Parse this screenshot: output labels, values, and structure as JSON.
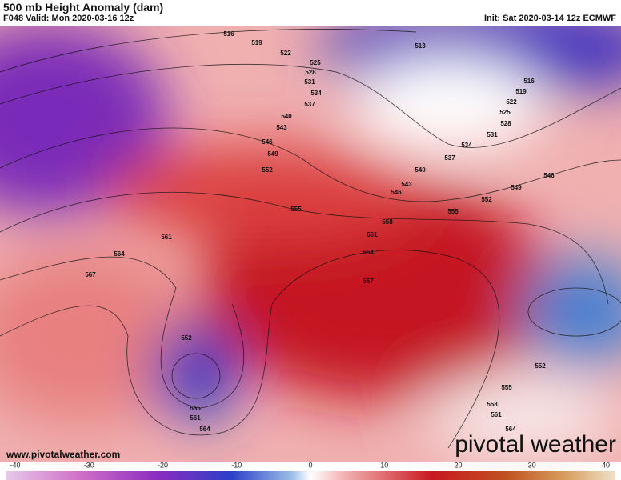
{
  "header": {
    "title": "500 mb Height Anomaly (dam)",
    "valid": "F048 Valid: Mon 2020-03-16 12z",
    "init": "Init: Sat 2020-03-14 12z ECMWF"
  },
  "contour_labels": [
    516,
    519,
    522,
    525,
    528,
    531,
    534,
    537,
    540,
    543,
    546,
    549,
    552,
    555,
    558,
    561,
    561,
    564,
    564,
    567,
    567,
    552,
    555,
    561,
    564,
    513,
    516,
    519,
    522,
    525,
    528,
    531,
    534,
    537,
    540,
    543,
    546,
    546,
    549,
    552,
    555,
    552,
    555,
    558,
    561,
    564
  ],
  "footer": {
    "website": "www.pivotalweather.com",
    "logo": "pivotal weather"
  },
  "colorbar": {
    "ticks": [
      -40,
      -30,
      -20,
      -10,
      0,
      10,
      20,
      30,
      40
    ]
  }
}
